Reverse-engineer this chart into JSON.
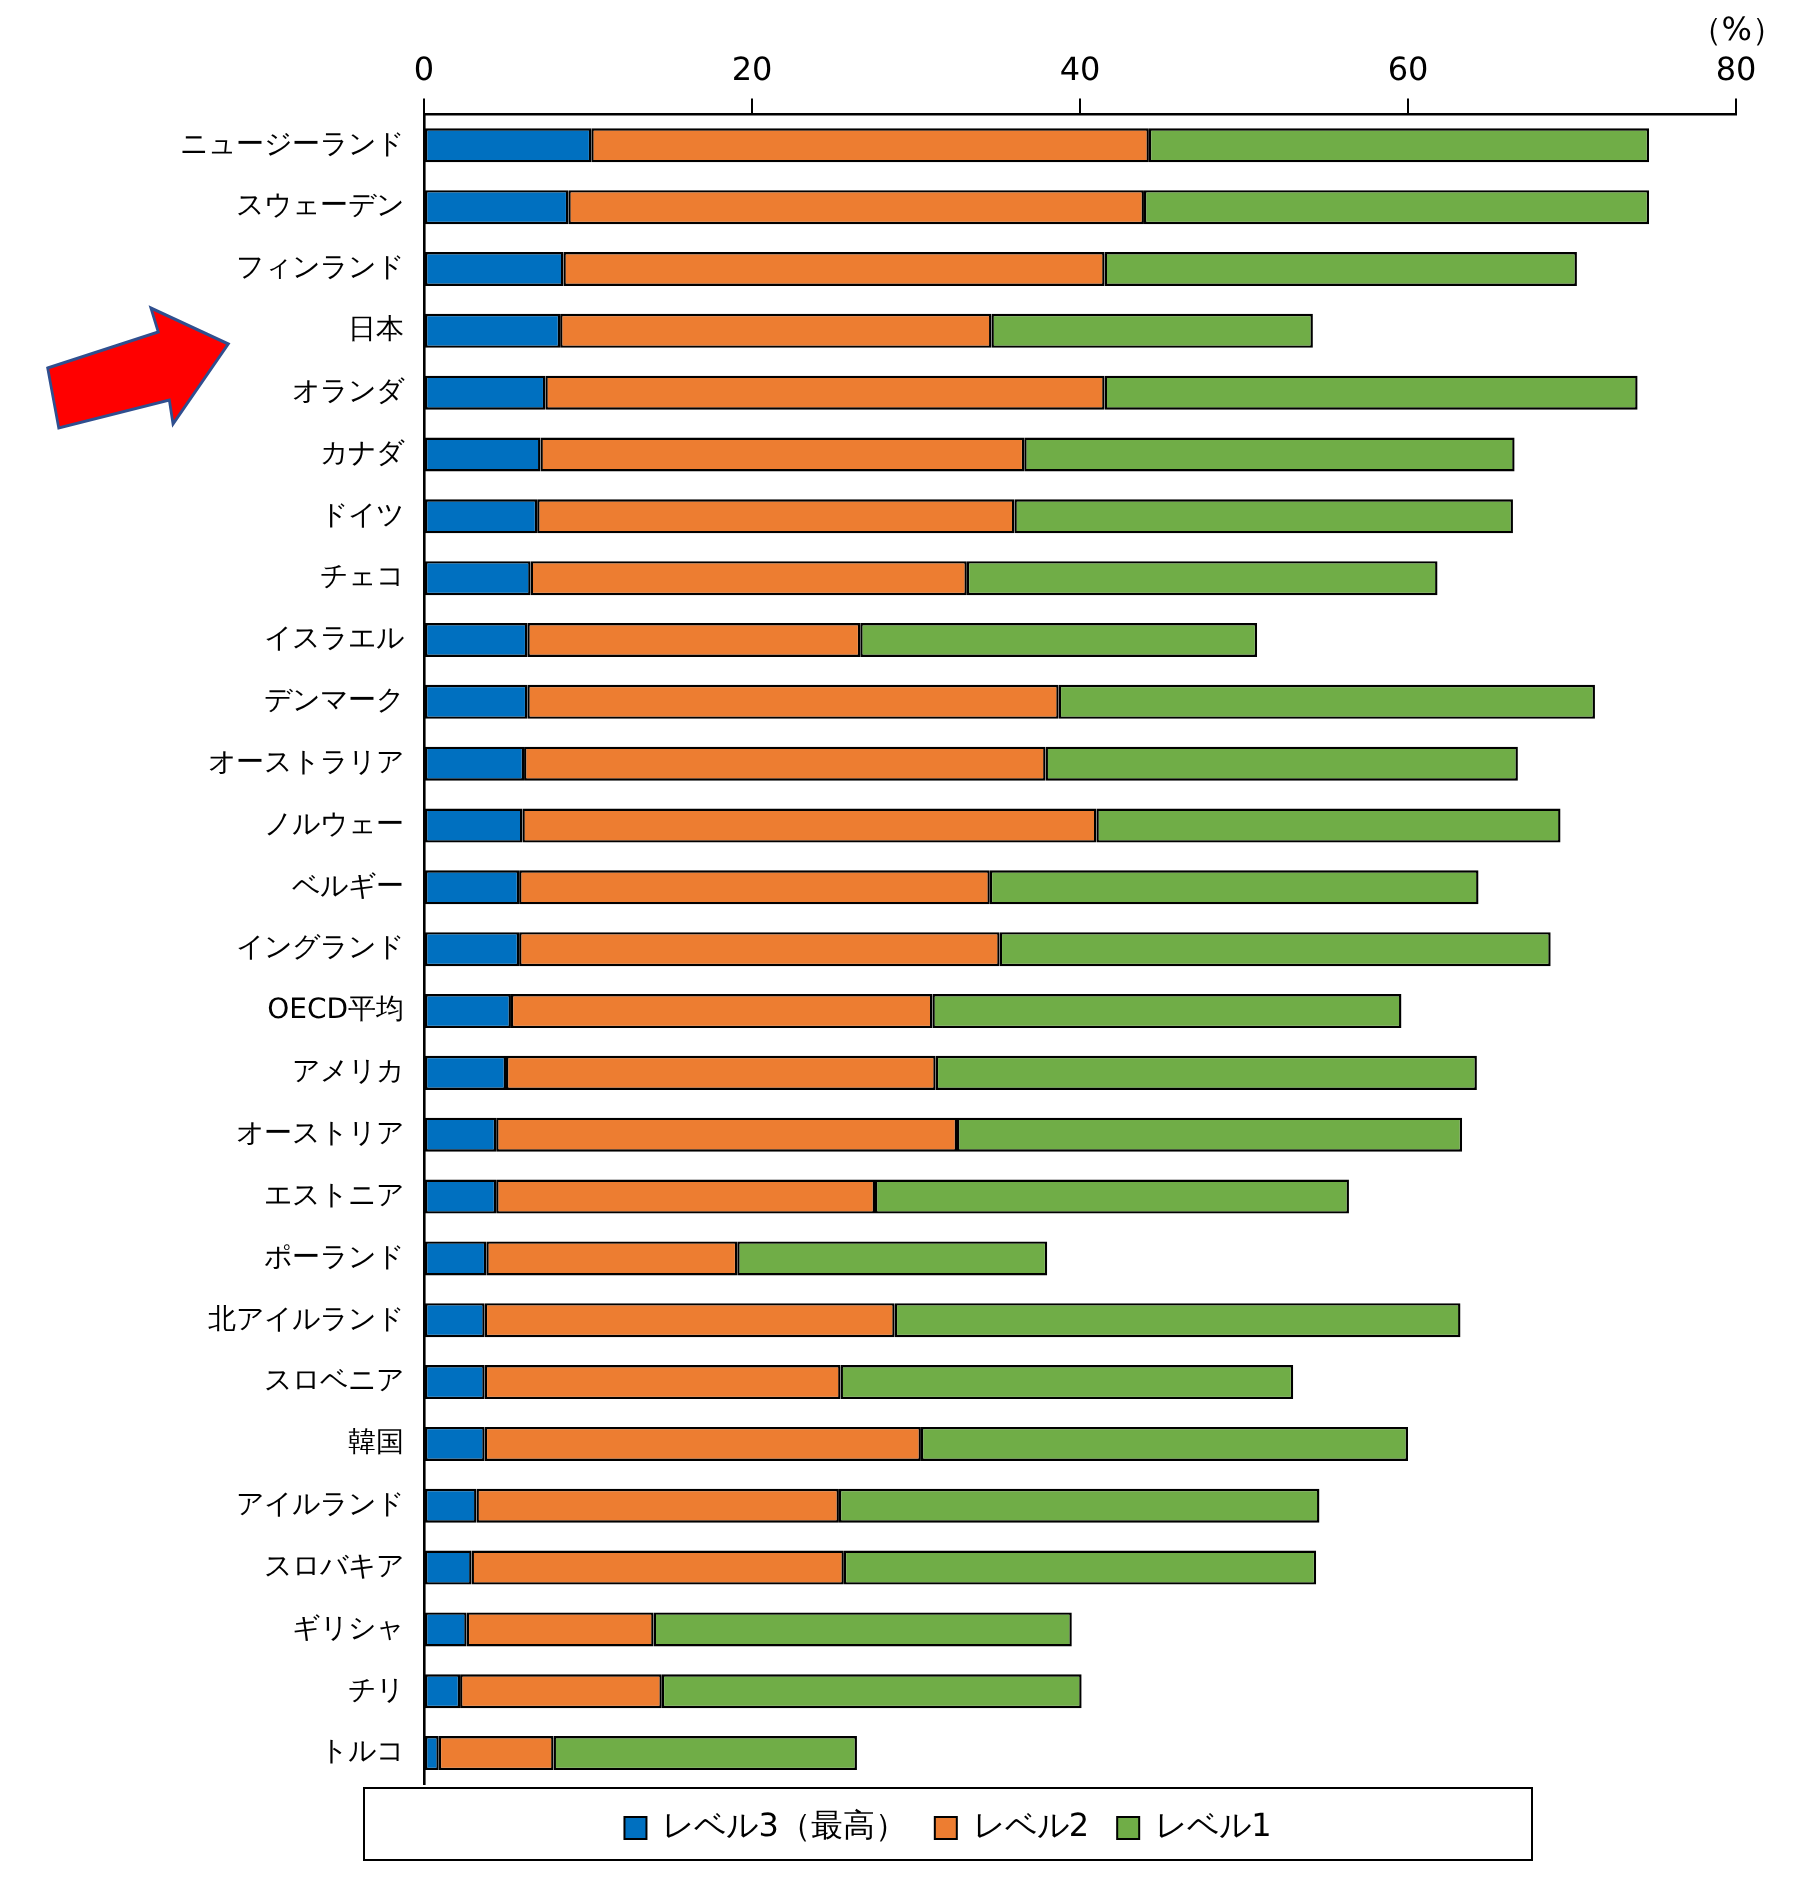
{
  "chart_data": {
    "type": "bar",
    "orientation": "horizontal",
    "stacked": true,
    "xlabel": "（%）",
    "categories": [
      "ニュージーランド",
      "スウェーデン",
      "フィンランド",
      "日本",
      "オランダ",
      "カナダ",
      "ドイツ",
      "チェコ",
      "イスラエル",
      "デンマーク",
      "オーストラリア",
      "ノルウェー",
      "ベルギー",
      "イングランド",
      "OECD平均",
      "アメリカ",
      "オーストリア",
      "エストニア",
      "ポーランド",
      "北アイルランド",
      "スロベニア",
      "韓国",
      "アイルランド",
      "スロバキア",
      "ギリシャ",
      "チリ",
      "トルコ"
    ],
    "series": [
      {
        "name": "レベル3（最高）",
        "color": "#0070c0",
        "values": [
          10.2,
          8.8,
          8.5,
          8.3,
          7.4,
          7.1,
          6.9,
          6.5,
          6.3,
          6.3,
          6.1,
          6.0,
          5.8,
          5.8,
          5.3,
          5.0,
          4.4,
          4.4,
          3.8,
          3.7,
          3.7,
          3.7,
          3.2,
          2.9,
          2.6,
          2.2,
          0.9
        ]
      },
      {
        "name": "レベル2",
        "color": "#ed7d31",
        "values": [
          34.0,
          35.1,
          33.0,
          26.3,
          34.1,
          29.5,
          29.1,
          26.6,
          20.3,
          32.4,
          31.8,
          35.0,
          28.7,
          29.3,
          25.7,
          26.2,
          28.1,
          23.1,
          15.3,
          25.0,
          21.7,
          26.6,
          22.1,
          22.7,
          11.4,
          12.3,
          7.0
        ]
      },
      {
        "name": "レベル1",
        "color": "#70ad47",
        "values": [
          30.5,
          30.8,
          28.8,
          19.6,
          32.5,
          29.9,
          30.4,
          28.7,
          24.2,
          32.7,
          28.8,
          28.3,
          29.8,
          33.6,
          28.6,
          33.0,
          30.8,
          28.9,
          18.9,
          34.5,
          27.6,
          29.7,
          29.3,
          28.8,
          25.5,
          25.6,
          18.5
        ]
      }
    ],
    "xlim": [
      0,
      80
    ],
    "xticks": [
      0,
      20,
      40,
      60,
      80
    ],
    "grid": false,
    "legend": "bottom"
  }
}
